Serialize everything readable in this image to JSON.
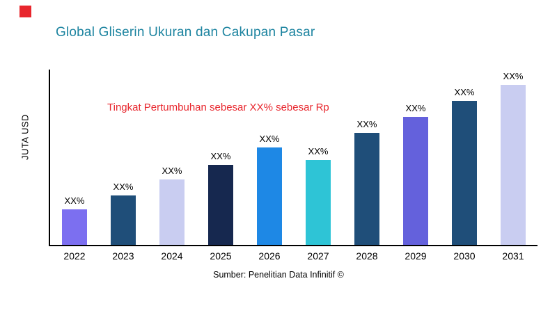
{
  "logo_color": "#e8262d",
  "title": {
    "text": "Global Gliserin Ukuran dan Cakupan Pasar",
    "color": "#1d84a0"
  },
  "annotation": {
    "text": "Tingkat Pertumbuhan sebesar XX% sebesar Rp",
    "color": "#e8262d"
  },
  "source": "Sumber: Penelitian Data Infinitif ©",
  "chart_data": {
    "type": "bar",
    "title": "Global Gliserin Ukuran dan Cakupan Pasar",
    "xlabel": "",
    "ylabel": "JUTA USD",
    "grid": false,
    "legend": false,
    "categories": [
      "2022",
      "2023",
      "2024",
      "2025",
      "2026",
      "2027",
      "2028",
      "2029",
      "2030",
      "2031"
    ],
    "values": [
      22,
      31,
      41,
      50,
      61,
      53,
      70,
      80,
      90,
      100
    ],
    "value_labels": [
      "XX%",
      "XX%",
      "XX%",
      "XX%",
      "XX%",
      "XX%",
      "XX%",
      "XX%",
      "XX%",
      "XX%"
    ],
    "bar_colors": [
      "#7c6ff0",
      "#1f4e79",
      "#c9cdf1",
      "#16284f",
      "#1e88e5",
      "#2ec4d6",
      "#1f4e79",
      "#6461dc",
      "#1f4e79",
      "#c9cdf1"
    ],
    "ylim_note": "values are relative bar heights; actual figures masked as XX%"
  }
}
